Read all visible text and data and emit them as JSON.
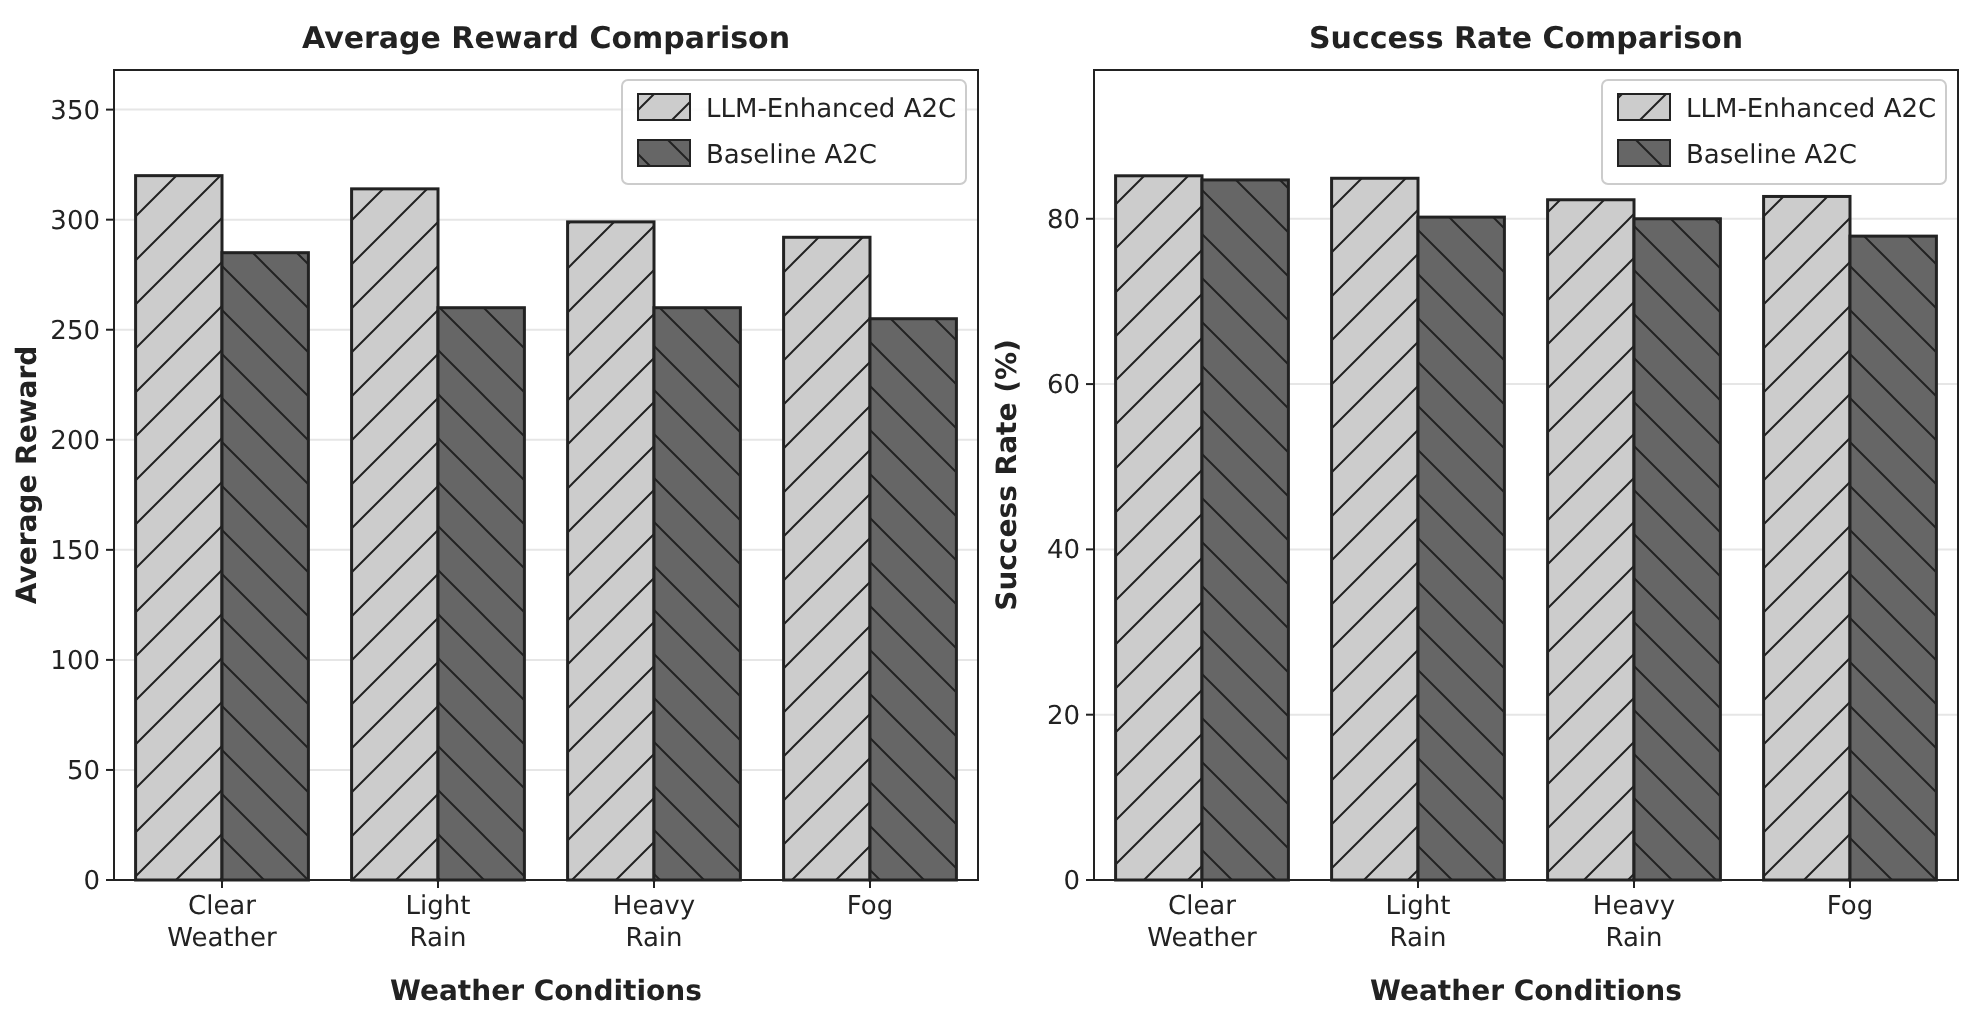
{
  "chart_data": [
    {
      "type": "bar",
      "title": "Average Reward Comparison",
      "xlabel": "Weather Conditions",
      "ylabel": "Average Reward",
      "categories": [
        "Clear Weather",
        "Light Rain",
        "Heavy Rain",
        "Fog"
      ],
      "series": [
        {
          "name": "LLM-Enhanced A2C",
          "color": "#cccccc",
          "values": [
            320,
            314,
            299,
            292
          ]
        },
        {
          "name": "Baseline A2C",
          "color": "#666666",
          "values": [
            285,
            260,
            260,
            255
          ]
        }
      ],
      "ylim": [
        0,
        368
      ],
      "yticks": [
        0,
        50,
        100,
        150,
        200,
        250,
        300,
        350
      ],
      "grid": "y",
      "legend": "top right"
    },
    {
      "type": "bar",
      "title": "Success Rate Comparison",
      "xlabel": "Weather Conditions",
      "ylabel": "Success Rate (%)",
      "categories": [
        "Clear Weather",
        "Light Rain",
        "Heavy Rain",
        "Fog"
      ],
      "series": [
        {
          "name": "LLM-Enhanced A2C",
          "color": "#cccccc",
          "values": [
            85.2,
            84.9,
            82.3,
            82.7
          ]
        },
        {
          "name": "Baseline A2C",
          "color": "#666666",
          "values": [
            84.7,
            80.2,
            80,
            77.9
          ]
        }
      ],
      "ylim": [
        0,
        98
      ],
      "yticks": [
        0,
        20,
        40,
        60,
        80
      ],
      "grid": "y",
      "legend": "top right"
    }
  ]
}
